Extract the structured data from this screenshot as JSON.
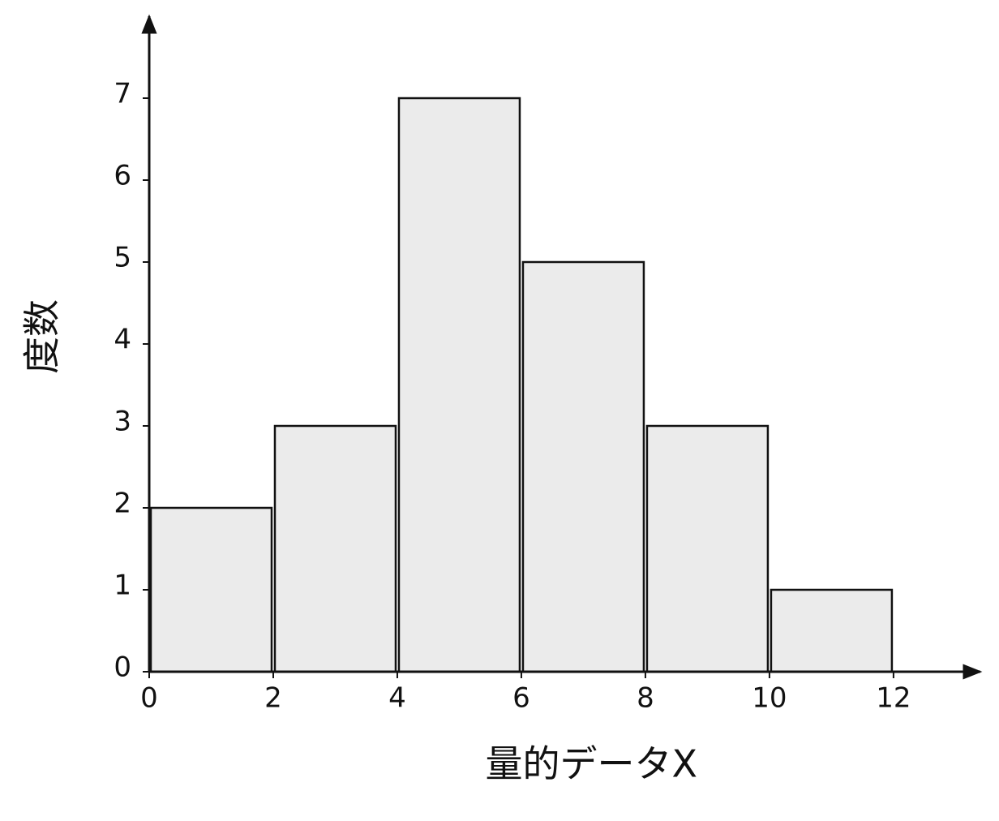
{
  "chart_data": {
    "type": "histogram",
    "x_label": "量的データX",
    "y_label": "度数",
    "bins": [
      0,
      2,
      4,
      6,
      8,
      10,
      12
    ],
    "values": [
      2,
      3,
      7,
      5,
      3,
      1
    ],
    "color": "#ebebeb",
    "edge_color": "#111111",
    "xlim": [
      0,
      13.4
    ],
    "ylim": [
      0,
      8
    ],
    "xticks": [
      0,
      2,
      4,
      6,
      8,
      10,
      12
    ],
    "yticks": [
      0,
      1,
      2,
      3,
      4,
      5,
      6,
      7
    ],
    "grid": false
  }
}
